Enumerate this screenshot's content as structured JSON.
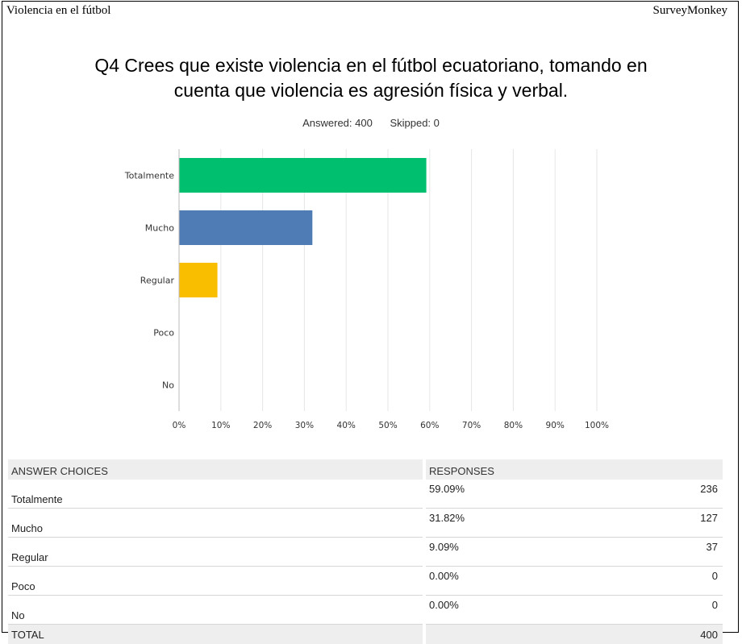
{
  "header": {
    "left": "Violencia en el fútbol",
    "right": "SurveyMonkey"
  },
  "question": {
    "title_line1": "Q4 Crees que existe violencia en el fútbol ecuatoriano, tomando en",
    "title_line2": "cuenta que violencia es agresión física y verbal.",
    "answered": "Answered: 400",
    "skipped": "Skipped: 0"
  },
  "colors": {
    "Totalmente": "#00bf6f",
    "Mucho": "#507cb6",
    "Regular": "#f9be00",
    "Poco": "#6bc8cd",
    "No": "#a4a4a4"
  },
  "chart_data": {
    "type": "bar",
    "orientation": "horizontal",
    "categories": [
      "Totalmente",
      "Mucho",
      "Regular",
      "Poco",
      "No"
    ],
    "values": [
      59.09,
      31.82,
      9.09,
      0.0,
      0.0
    ],
    "xlim": [
      0,
      100
    ],
    "ticks": [
      "0%",
      "10%",
      "20%",
      "30%",
      "40%",
      "50%",
      "60%",
      "70%",
      "80%",
      "90%",
      "100%"
    ],
    "grid": true
  },
  "table": {
    "headers": [
      "ANSWER CHOICES",
      "RESPONSES",
      ""
    ],
    "rows": [
      {
        "choice": "Totalmente",
        "pct": "59.09%",
        "count": "236"
      },
      {
        "choice": "Mucho",
        "pct": "31.82%",
        "count": "127"
      },
      {
        "choice": "Regular",
        "pct": "9.09%",
        "count": "37"
      },
      {
        "choice": "Poco",
        "pct": "0.00%",
        "count": "0"
      },
      {
        "choice": "No",
        "pct": "0.00%",
        "count": "0"
      }
    ],
    "total_label": "TOTAL",
    "total_value": "400"
  }
}
